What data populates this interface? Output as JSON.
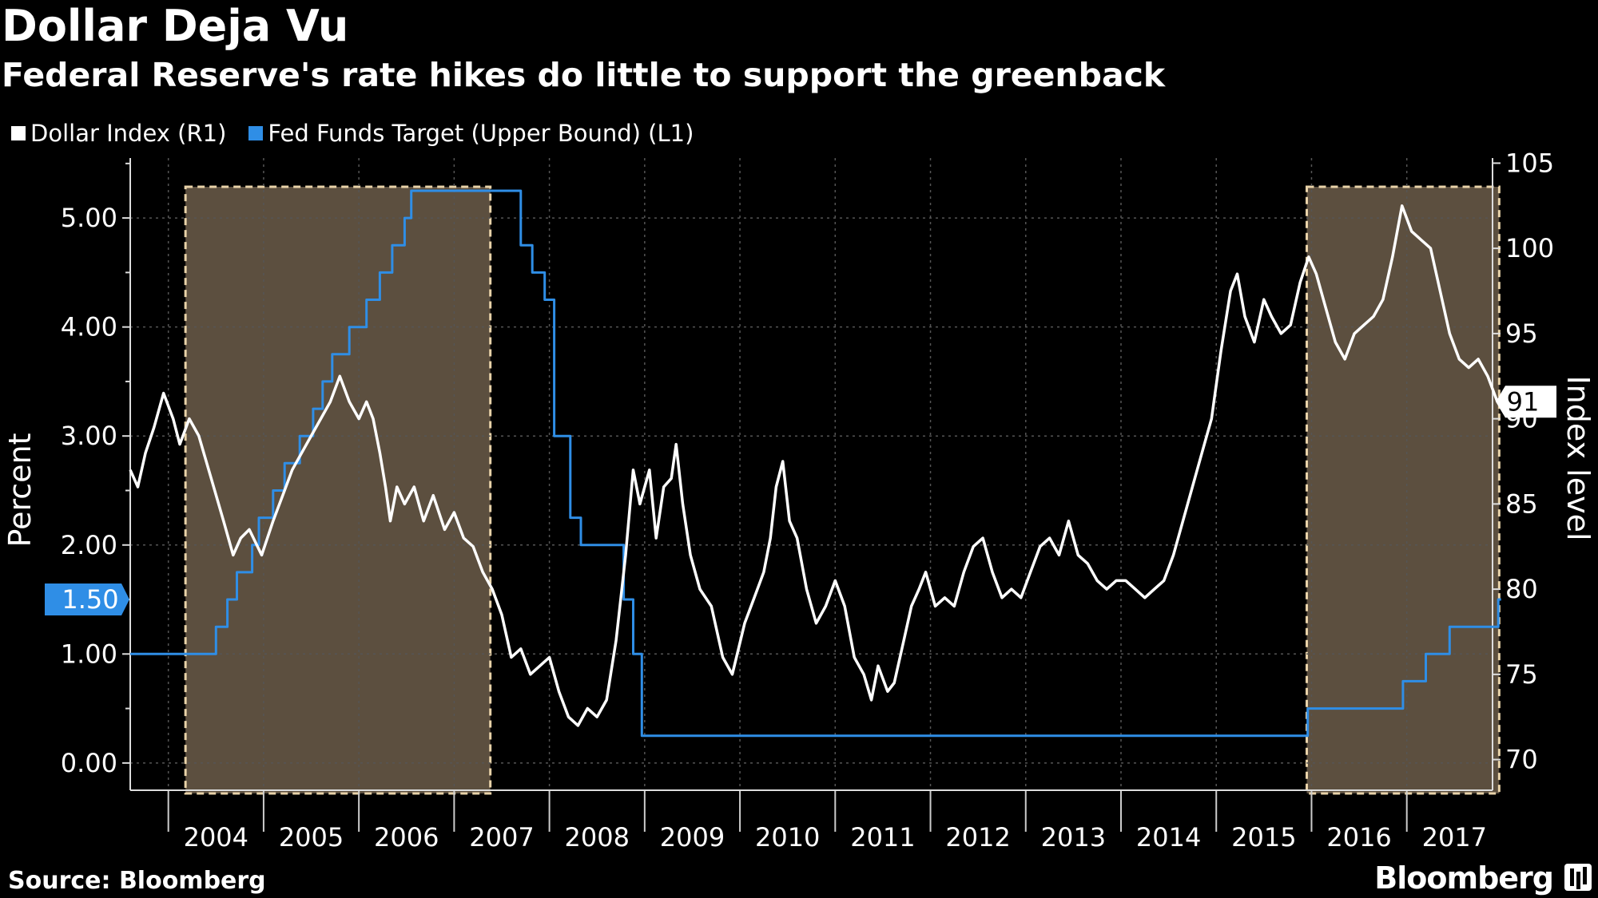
{
  "title": "Dollar Deja Vu",
  "subtitle": "Federal Reserve's rate hikes do little to support the greenback",
  "source": "Source: Bloomberg",
  "brand": "Bloomberg",
  "legend": [
    {
      "label": "Dollar Index (R1)",
      "color": "#ffffff"
    },
    {
      "label": "Fed Funds Target (Upper Bound) (L1)",
      "color": "#2f8ee6"
    }
  ],
  "chart_data": {
    "type": "line",
    "title": "Dollar Deja Vu",
    "subtitle": "Federal Reserve's rate hikes do little to support the greenback",
    "x_tick_labels": [
      "2004",
      "2005",
      "2006",
      "2007",
      "2008",
      "2009",
      "2010",
      "2011",
      "2012",
      "2013",
      "2014",
      "2015",
      "2016",
      "2017"
    ],
    "x_range": [
      2003.6,
      2017.9
    ],
    "left_axis": {
      "label": "Percent",
      "ticks": [
        "0.00",
        "1.00",
        "2.00",
        "3.00",
        "4.00",
        "5.00"
      ],
      "range": [
        -0.25,
        5.55
      ],
      "last_value_label": "1.50"
    },
    "right_axis": {
      "label": "Index level",
      "ticks": [
        "70",
        "75",
        "80",
        "85",
        "90",
        "95",
        "100",
        "105"
      ],
      "range": [
        68.2,
        105.3
      ],
      "last_value_label": "91"
    },
    "grid": true,
    "legend_position": "top-left",
    "shaded_periods": [
      {
        "start": 2004.18,
        "end": 2007.38
      },
      {
        "start": 2015.95,
        "end": 2017.97
      }
    ],
    "series": [
      {
        "name": "Fed Funds Target (Upper Bound) (L1)",
        "axis": "left",
        "color": "#2f8ee6",
        "step": true,
        "points": [
          [
            2003.6,
            1.0
          ],
          [
            2004.5,
            1.25
          ],
          [
            2004.62,
            1.5
          ],
          [
            2004.72,
            1.75
          ],
          [
            2004.88,
            2.0
          ],
          [
            2004.95,
            2.25
          ],
          [
            2005.1,
            2.5
          ],
          [
            2005.22,
            2.75
          ],
          [
            2005.38,
            3.0
          ],
          [
            2005.52,
            3.25
          ],
          [
            2005.62,
            3.5
          ],
          [
            2005.72,
            3.75
          ],
          [
            2005.9,
            4.0
          ],
          [
            2006.08,
            4.25
          ],
          [
            2006.22,
            4.5
          ],
          [
            2006.35,
            4.75
          ],
          [
            2006.48,
            5.0
          ],
          [
            2006.55,
            5.25
          ],
          [
            2007.7,
            4.75
          ],
          [
            2007.82,
            4.5
          ],
          [
            2007.95,
            4.25
          ],
          [
            2008.05,
            3.0
          ],
          [
            2008.22,
            2.25
          ],
          [
            2008.33,
            2.0
          ],
          [
            2008.78,
            1.5
          ],
          [
            2008.88,
            1.0
          ],
          [
            2008.97,
            0.25
          ],
          [
            2015.96,
            0.5
          ],
          [
            2016.96,
            0.75
          ],
          [
            2017.2,
            1.0
          ],
          [
            2017.45,
            1.25
          ],
          [
            2017.96,
            1.5
          ],
          [
            2017.99,
            1.5
          ]
        ]
      },
      {
        "name": "Dollar Index (R1)",
        "axis": "right",
        "color": "#ffffff",
        "points": [
          [
            2003.6,
            87
          ],
          [
            2003.68,
            86
          ],
          [
            2003.76,
            88
          ],
          [
            2003.85,
            89.5
          ],
          [
            2003.95,
            91.5
          ],
          [
            2004.05,
            90
          ],
          [
            2004.12,
            88.5
          ],
          [
            2004.22,
            90
          ],
          [
            2004.32,
            89
          ],
          [
            2004.45,
            86.5
          ],
          [
            2004.58,
            84
          ],
          [
            2004.68,
            82
          ],
          [
            2004.76,
            83
          ],
          [
            2004.85,
            83.5
          ],
          [
            2004.98,
            82
          ],
          [
            2005.1,
            84
          ],
          [
            2005.2,
            85.5
          ],
          [
            2005.3,
            87
          ],
          [
            2005.4,
            88
          ],
          [
            2005.5,
            89
          ],
          [
            2005.6,
            90
          ],
          [
            2005.7,
            91
          ],
          [
            2005.8,
            92.5
          ],
          [
            2005.9,
            91
          ],
          [
            2006.0,
            90
          ],
          [
            2006.08,
            91
          ],
          [
            2006.15,
            90
          ],
          [
            2006.22,
            88
          ],
          [
            2006.28,
            86
          ],
          [
            2006.33,
            84
          ],
          [
            2006.4,
            86
          ],
          [
            2006.48,
            85
          ],
          [
            2006.58,
            86
          ],
          [
            2006.68,
            84
          ],
          [
            2006.78,
            85.5
          ],
          [
            2006.9,
            83.5
          ],
          [
            2007.0,
            84.5
          ],
          [
            2007.1,
            83
          ],
          [
            2007.2,
            82.5
          ],
          [
            2007.3,
            81
          ],
          [
            2007.4,
            80
          ],
          [
            2007.5,
            78.5
          ],
          [
            2007.6,
            76
          ],
          [
            2007.7,
            76.5
          ],
          [
            2007.8,
            75
          ],
          [
            2007.9,
            75.5
          ],
          [
            2008.0,
            76
          ],
          [
            2008.1,
            74
          ],
          [
            2008.2,
            72.5
          ],
          [
            2008.3,
            72
          ],
          [
            2008.4,
            73
          ],
          [
            2008.5,
            72.5
          ],
          [
            2008.6,
            73.5
          ],
          [
            2008.7,
            77
          ],
          [
            2008.8,
            82
          ],
          [
            2008.88,
            87
          ],
          [
            2008.95,
            85
          ],
          [
            2009.05,
            87
          ],
          [
            2009.12,
            83
          ],
          [
            2009.2,
            86
          ],
          [
            2009.28,
            86.5
          ],
          [
            2009.33,
            88.5
          ],
          [
            2009.4,
            85
          ],
          [
            2009.48,
            82
          ],
          [
            2009.58,
            80
          ],
          [
            2009.7,
            79
          ],
          [
            2009.82,
            76
          ],
          [
            2009.92,
            75
          ],
          [
            2010.05,
            78
          ],
          [
            2010.15,
            79.5
          ],
          [
            2010.25,
            81
          ],
          [
            2010.32,
            83
          ],
          [
            2010.38,
            86
          ],
          [
            2010.45,
            87.5
          ],
          [
            2010.52,
            84
          ],
          [
            2010.6,
            83
          ],
          [
            2010.7,
            80
          ],
          [
            2010.8,
            78
          ],
          [
            2010.9,
            79
          ],
          [
            2011.0,
            80.5
          ],
          [
            2011.1,
            79
          ],
          [
            2011.2,
            76
          ],
          [
            2011.3,
            75
          ],
          [
            2011.38,
            73.5
          ],
          [
            2011.45,
            75.5
          ],
          [
            2011.55,
            74
          ],
          [
            2011.62,
            74.5
          ],
          [
            2011.72,
            77
          ],
          [
            2011.8,
            79
          ],
          [
            2011.88,
            80
          ],
          [
            2011.95,
            81
          ],
          [
            2012.05,
            79
          ],
          [
            2012.15,
            79.5
          ],
          [
            2012.25,
            79
          ],
          [
            2012.35,
            81
          ],
          [
            2012.45,
            82.5
          ],
          [
            2012.55,
            83
          ],
          [
            2012.65,
            81
          ],
          [
            2012.75,
            79.5
          ],
          [
            2012.85,
            80
          ],
          [
            2012.95,
            79.5
          ],
          [
            2013.05,
            81
          ],
          [
            2013.15,
            82.5
          ],
          [
            2013.25,
            83
          ],
          [
            2013.35,
            82
          ],
          [
            2013.45,
            84
          ],
          [
            2013.55,
            82
          ],
          [
            2013.65,
            81.5
          ],
          [
            2013.75,
            80.5
          ],
          [
            2013.85,
            80
          ],
          [
            2013.95,
            80.5
          ],
          [
            2014.05,
            80.5
          ],
          [
            2014.15,
            80
          ],
          [
            2014.25,
            79.5
          ],
          [
            2014.35,
            80
          ],
          [
            2014.45,
            80.5
          ],
          [
            2014.55,
            82
          ],
          [
            2014.65,
            84
          ],
          [
            2014.75,
            86
          ],
          [
            2014.85,
            88
          ],
          [
            2014.95,
            90
          ],
          [
            2015.05,
            94
          ],
          [
            2015.15,
            97.5
          ],
          [
            2015.22,
            98.5
          ],
          [
            2015.3,
            96
          ],
          [
            2015.4,
            94.5
          ],
          [
            2015.5,
            97
          ],
          [
            2015.58,
            96
          ],
          [
            2015.68,
            95
          ],
          [
            2015.78,
            95.5
          ],
          [
            2015.88,
            98
          ],
          [
            2015.97,
            99.5
          ],
          [
            2016.05,
            98.5
          ],
          [
            2016.15,
            96.5
          ],
          [
            2016.25,
            94.5
          ],
          [
            2016.35,
            93.5
          ],
          [
            2016.45,
            95
          ],
          [
            2016.55,
            95.5
          ],
          [
            2016.65,
            96
          ],
          [
            2016.75,
            97
          ],
          [
            2016.85,
            99.5
          ],
          [
            2016.95,
            102.5
          ],
          [
            2017.05,
            101
          ],
          [
            2017.15,
            100.5
          ],
          [
            2017.25,
            100
          ],
          [
            2017.35,
            97.5
          ],
          [
            2017.45,
            95
          ],
          [
            2017.55,
            93.5
          ],
          [
            2017.65,
            93
          ],
          [
            2017.75,
            93.5
          ],
          [
            2017.85,
            92.5
          ],
          [
            2017.95,
            91
          ]
        ]
      }
    ]
  }
}
